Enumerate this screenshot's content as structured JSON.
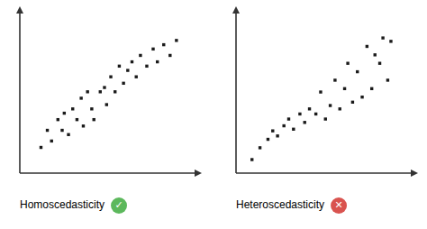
{
  "chart_data": [
    {
      "type": "scatter",
      "title": "Homoscedasticity",
      "x": [
        1.5,
        1.8,
        2.0,
        2.3,
        2.5,
        2.6,
        2.8,
        3.0,
        3.2,
        3.4,
        3.5,
        3.7,
        3.9,
        4.0,
        4.3,
        4.5,
        4.6,
        4.8,
        5.0,
        5.2,
        5.4,
        5.6,
        5.8,
        6.0,
        6.2,
        6.5,
        6.8,
        7.0,
        7.3,
        7.6,
        7.9
      ],
      "values": [
        1.2,
        2.0,
        1.5,
        2.5,
        2.0,
        2.8,
        1.8,
        3.0,
        2.5,
        3.5,
        2.2,
        3.8,
        3.0,
        2.5,
        3.8,
        4.0,
        3.2,
        4.5,
        3.8,
        5.0,
        4.2,
        4.8,
        5.2,
        4.5,
        5.5,
        5.0,
        5.8,
        5.2,
        6.0,
        5.5,
        6.2
      ],
      "color": "#1a1a1a",
      "marker": "square",
      "xlim": [
        0.5,
        8.8
      ],
      "ylim": [
        0.0,
        7.5
      ],
      "tick_labels": false,
      "grid": false,
      "annotations": [
        {
          "text": "✓",
          "color": "#5cb85c"
        }
      ]
    },
    {
      "type": "scatter",
      "title": "Heteroscedasticity",
      "x": [
        1.0,
        1.5,
        2.0,
        2.3,
        2.6,
        3.0,
        3.3,
        3.6,
        4.0,
        4.3,
        4.6,
        5.0,
        5.3,
        5.6,
        5.9,
        6.2,
        6.5,
        6.8,
        7.0,
        7.3,
        7.6,
        7.9,
        8.2,
        8.5,
        8.7,
        9.0,
        9.2,
        9.5,
        9.7
      ],
      "values": [
        0.8,
        1.5,
        2.0,
        2.5,
        2.2,
        2.8,
        3.2,
        2.6,
        3.5,
        3.0,
        3.8,
        3.5,
        4.8,
        3.2,
        4.0,
        5.5,
        3.8,
        5.0,
        6.5,
        4.2,
        6.0,
        4.5,
        7.5,
        5.0,
        7.0,
        6.5,
        8.0,
        5.5,
        7.8
      ],
      "color": "#1a1a1a",
      "marker": "square",
      "xlim": [
        0.0,
        11.0
      ],
      "ylim": [
        0.0,
        9.5
      ],
      "tick_labels": false,
      "grid": false,
      "annotations": [
        {
          "text": "✕",
          "color": "#d9534f"
        }
      ]
    }
  ]
}
